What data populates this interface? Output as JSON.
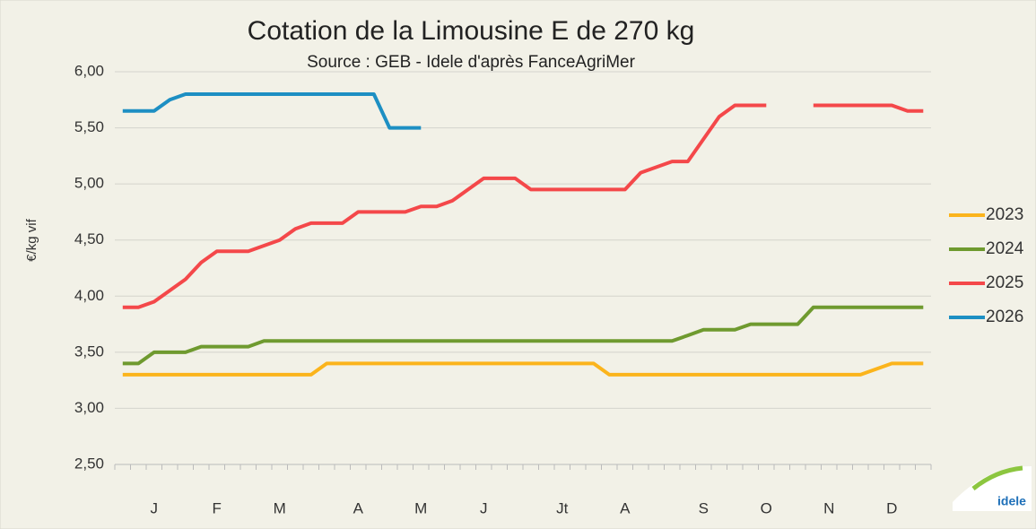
{
  "chart_data": {
    "type": "line",
    "title": "Cotation de la Limousine E de 270 kg",
    "subtitle": "Source : GEB - Idele d'après FanceAgriMer",
    "y_label": "€/kg vif",
    "logo_text": "idele",
    "categories": [
      null,
      null,
      "J",
      null,
      null,
      null,
      "F",
      null,
      null,
      null,
      "M",
      null,
      null,
      null,
      null,
      "A",
      null,
      null,
      null,
      "M",
      null,
      null,
      null,
      "J",
      null,
      null,
      null,
      null,
      "Jt",
      null,
      null,
      null,
      "A",
      null,
      null,
      null,
      null,
      "S",
      null,
      null,
      null,
      "O",
      null,
      null,
      null,
      "N",
      null,
      null,
      null,
      "D",
      null,
      null
    ],
    "ylim": [
      2.5,
      6
    ],
    "yticks": [
      {
        "value": 2.5,
        "label": "2,50"
      },
      {
        "value": 3,
        "label": "3,00"
      },
      {
        "value": 3.5,
        "label": "3,50"
      },
      {
        "value": 4,
        "label": "4,00"
      },
      {
        "value": 4.5,
        "label": "4,50"
      },
      {
        "value": 5,
        "label": "5,00"
      },
      {
        "value": 5.5,
        "label": "5,50"
      },
      {
        "value": 6,
        "label": "6,00"
      }
    ],
    "grid": true,
    "legend": "right",
    "series": [
      {
        "name": "2023",
        "color": "#fbb41c",
        "values": [
          3.3,
          3.3,
          3.3,
          3.3,
          3.3,
          3.3,
          3.3,
          3.3,
          3.3,
          3.3,
          3.3,
          3.3,
          3.3,
          3.4,
          3.4,
          3.4,
          3.4,
          3.4,
          3.4,
          3.4,
          3.4,
          3.4,
          3.4,
          3.4,
          3.4,
          3.4,
          3.4,
          3.4,
          3.4,
          3.4,
          3.4,
          3.3,
          3.3,
          3.3,
          3.3,
          3.3,
          3.3,
          3.3,
          3.3,
          3.3,
          3.3,
          3.3,
          3.3,
          3.3,
          3.3,
          3.3,
          3.3,
          3.3,
          3.35,
          3.4,
          3.4,
          3.4
        ]
      },
      {
        "name": "2024",
        "color": "#6f9a2f",
        "values": [
          3.4,
          3.4,
          3.5,
          3.5,
          3.5,
          3.55,
          3.55,
          3.55,
          3.55,
          3.6,
          3.6,
          3.6,
          3.6,
          3.6,
          3.6,
          3.6,
          3.6,
          3.6,
          3.6,
          3.6,
          3.6,
          3.6,
          3.6,
          3.6,
          3.6,
          3.6,
          3.6,
          3.6,
          3.6,
          3.6,
          3.6,
          3.6,
          3.6,
          3.6,
          3.6,
          3.6,
          3.65,
          3.7,
          3.7,
          3.7,
          3.75,
          3.75,
          3.75,
          3.75,
          3.9,
          3.9,
          3.9,
          3.9,
          3.9,
          3.9,
          3.9,
          3.9
        ]
      },
      {
        "name": "2025",
        "color": "#f4484a",
        "values": [
          3.9,
          3.9,
          3.95,
          4.05,
          4.15,
          4.3,
          4.4,
          4.4,
          4.4,
          4.45,
          4.5,
          4.6,
          4.65,
          4.65,
          4.65,
          4.75,
          4.75,
          4.75,
          4.75,
          4.8,
          4.8,
          4.85,
          4.95,
          5.05,
          5.05,
          5.05,
          4.95,
          4.95,
          4.95,
          4.95,
          4.95,
          4.95,
          4.95,
          5.1,
          5.15,
          5.2,
          5.2,
          5.4,
          5.6,
          5.7,
          5.7,
          5.7,
          null,
          null,
          5.7,
          5.7,
          5.7,
          5.7,
          5.7,
          5.7,
          5.65,
          5.65
        ]
      },
      {
        "name": "2026",
        "color": "#1d8fc3",
        "values": [
          5.65,
          5.65,
          5.65,
          5.75,
          5.8,
          5.8,
          5.8,
          5.8,
          5.8,
          5.8,
          5.8,
          5.8,
          5.8,
          5.8,
          5.8,
          5.8,
          5.8,
          5.5,
          5.5,
          5.5,
          null,
          null,
          null,
          null,
          null,
          null,
          null,
          null,
          null,
          null,
          null,
          null,
          null,
          null,
          null,
          null,
          null,
          null,
          null,
          null,
          null,
          null,
          null,
          null,
          null,
          null,
          null,
          null,
          null,
          null,
          null,
          null
        ]
      }
    ]
  }
}
